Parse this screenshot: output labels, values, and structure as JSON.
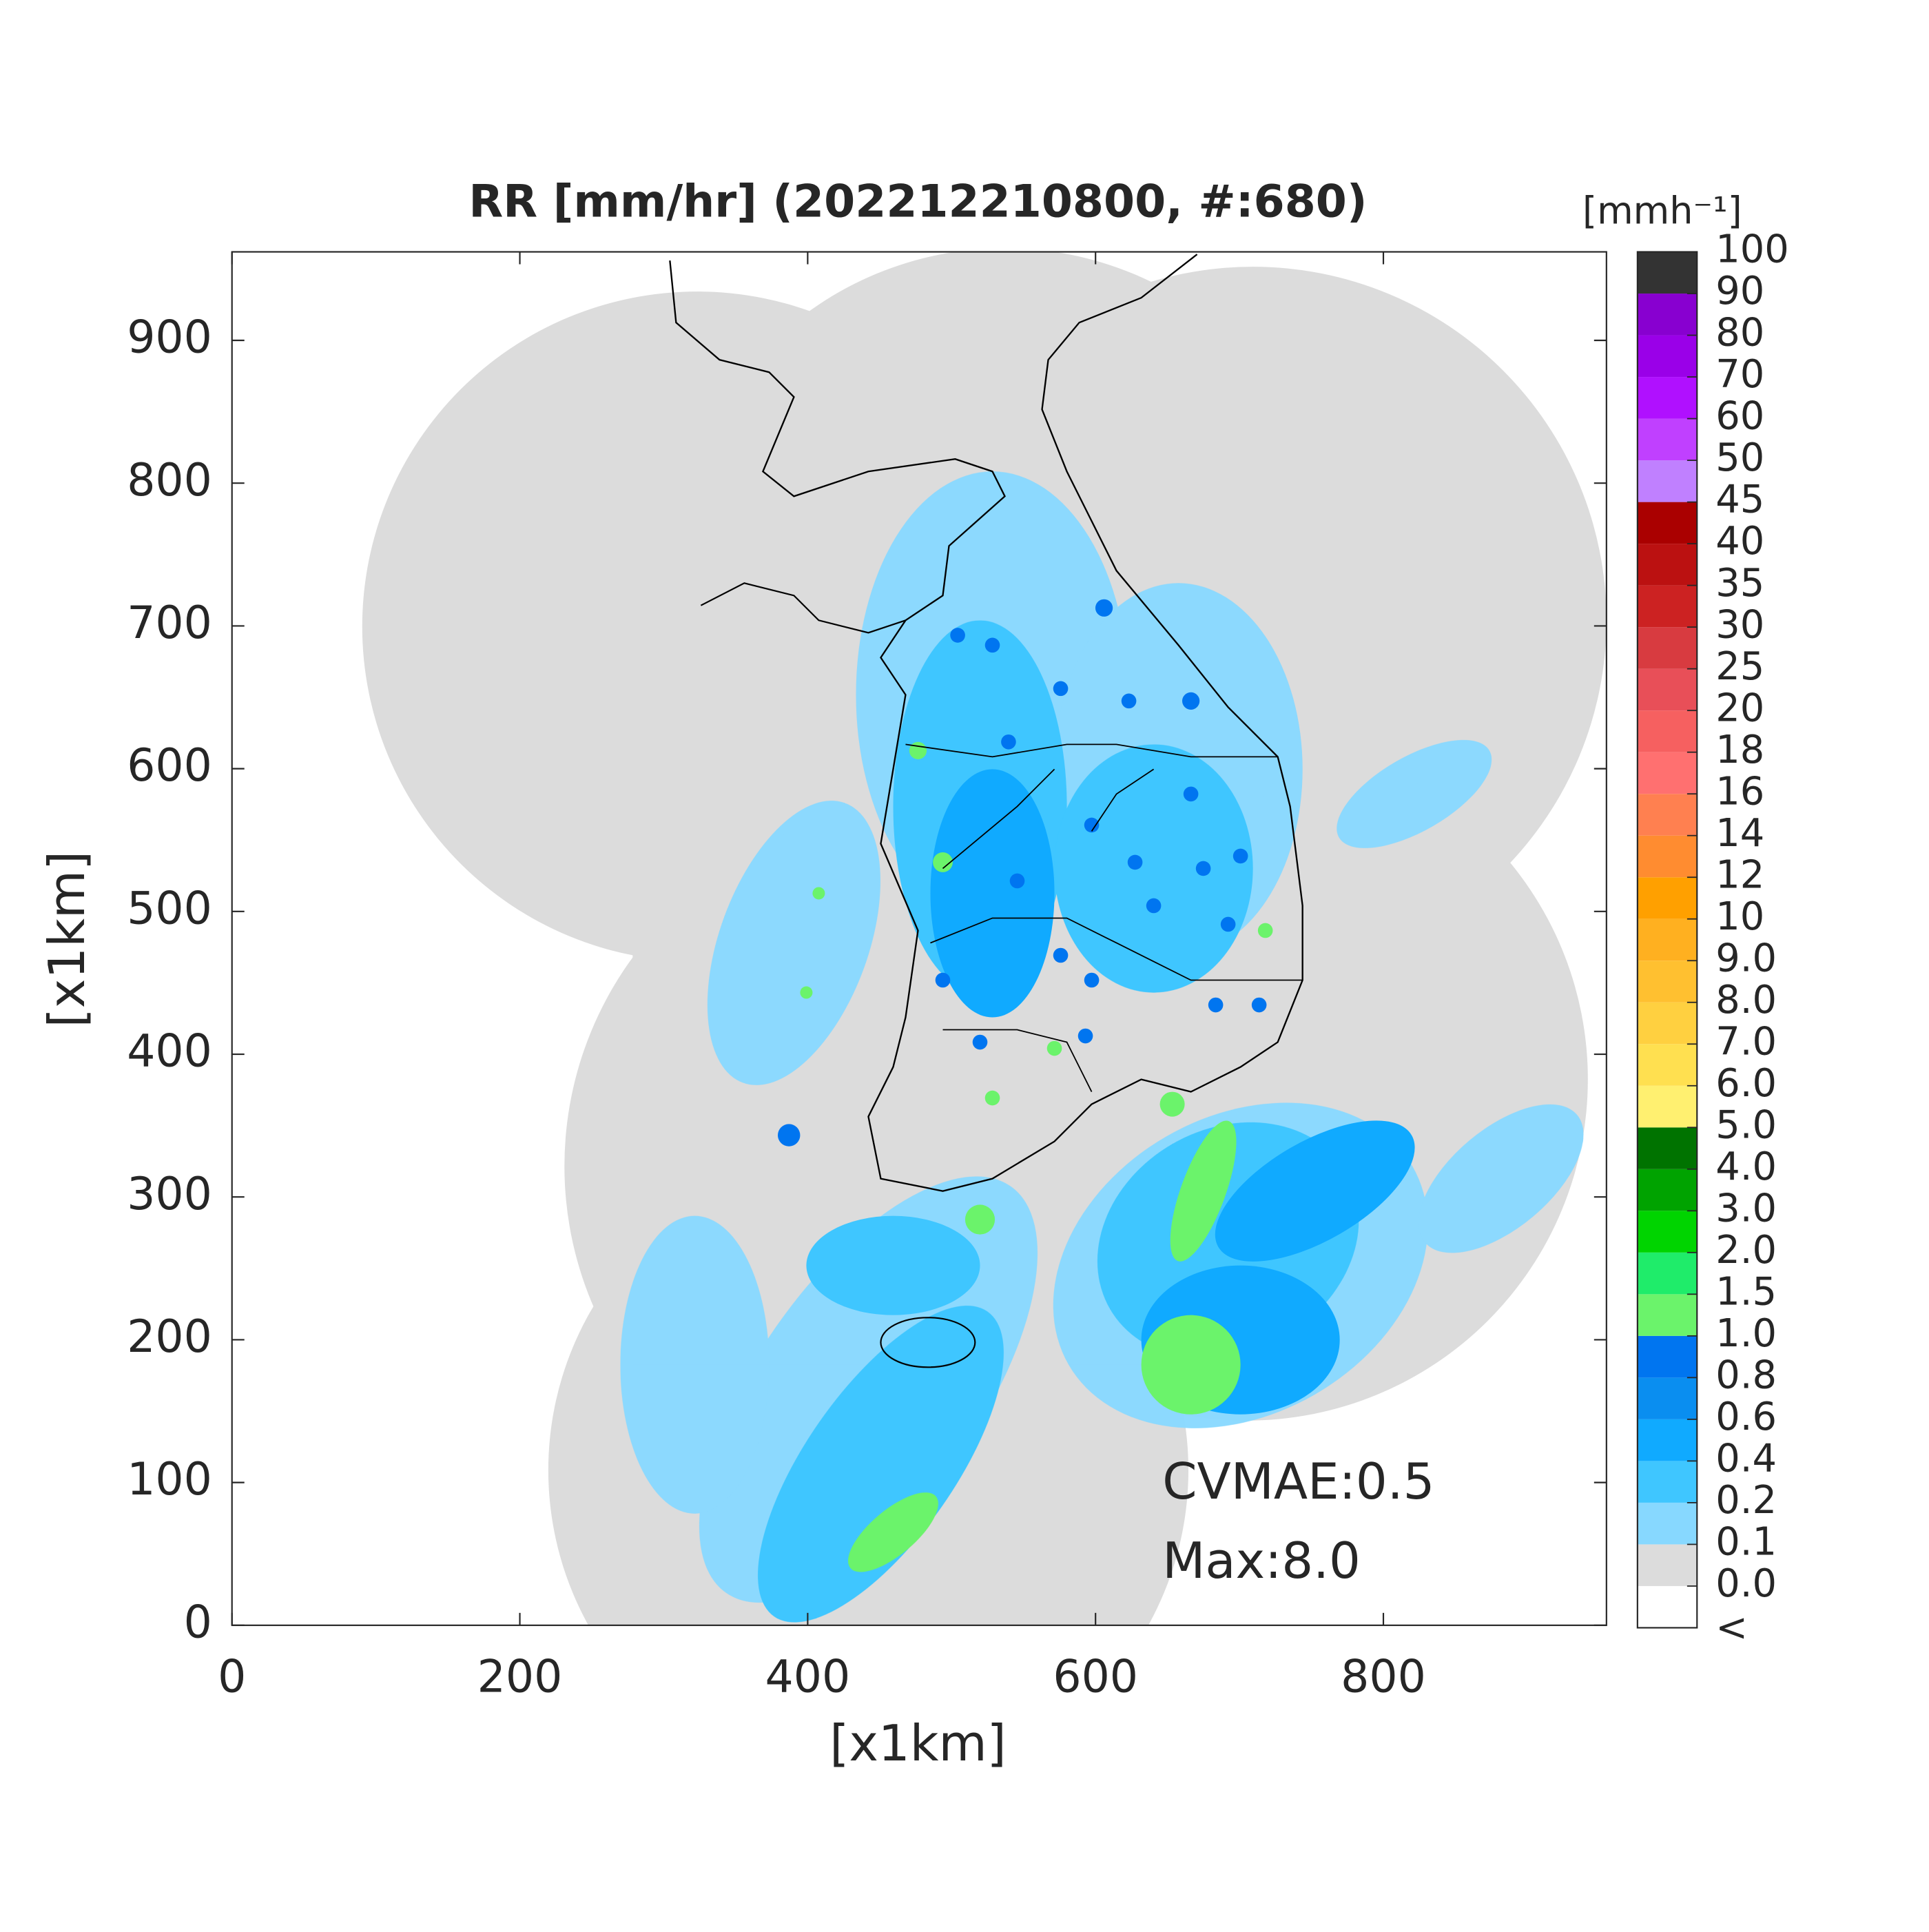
{
  "chart_data": {
    "type": "map",
    "title": "RR [mm/hr] (202212210800, #:680)",
    "xlabel": "[x1km]",
    "ylabel": "[x1km]",
    "xlim": [
      0,
      955
    ],
    "ylim": [
      0,
      962
    ],
    "xticks": [
      0,
      200,
      400,
      600,
      800
    ],
    "yticks": [
      0,
      100,
      200,
      300,
      400,
      500,
      600,
      700,
      800,
      900
    ],
    "annotations": [
      "CVMAE:0.5",
      "Max:8.0"
    ],
    "colorbar": {
      "units": "[mmh⁻¹]",
      "ticks": [
        {
          "value": 0,
          "label": "0.0"
        },
        0.1,
        0.2,
        0.4,
        0.6,
        0.8,
        {
          "value": 1,
          "label": "1.0"
        },
        1.5,
        {
          "value": 2,
          "label": "2.0"
        },
        {
          "value": 3,
          "label": "3.0"
        },
        {
          "value": 4,
          "label": "4.0"
        },
        {
          "value": 5,
          "label": "5.0"
        },
        {
          "value": 6,
          "label": "6.0"
        },
        {
          "value": 7,
          "label": "7.0"
        },
        {
          "value": 8,
          "label": "8.0"
        },
        {
          "value": 9,
          "label": "9.0"
        },
        10,
        12,
        14,
        16,
        18,
        20,
        25,
        30,
        35,
        40,
        45,
        50,
        60,
        70,
        80,
        90,
        100
      ],
      "colors": [
        "#dcdcdc",
        "#87d8ff",
        "#3fc6ff",
        "#10aaff",
        "#0a8ef0",
        "#0075f0",
        "#6bf36b",
        "#1fec6a",
        "#00d400",
        "#00a300",
        "#007300",
        "#fff070",
        "#ffe050",
        "#ffd040",
        "#ffc030",
        "#ffb020",
        "#ffa000",
        "#ff8c30",
        "#ff8050",
        "#ff7070",
        "#f66060",
        "#e84f58",
        "#d83b40",
        "#cc2222",
        "#bb1111",
        "#aa0000",
        "#c080ff",
        "#c040ff",
        "#b010ff",
        "#9a00e8",
        "#8800d0",
        "#333333"
      ],
      "under_label": "<",
      "under_color": "#ffffff"
    }
  }
}
